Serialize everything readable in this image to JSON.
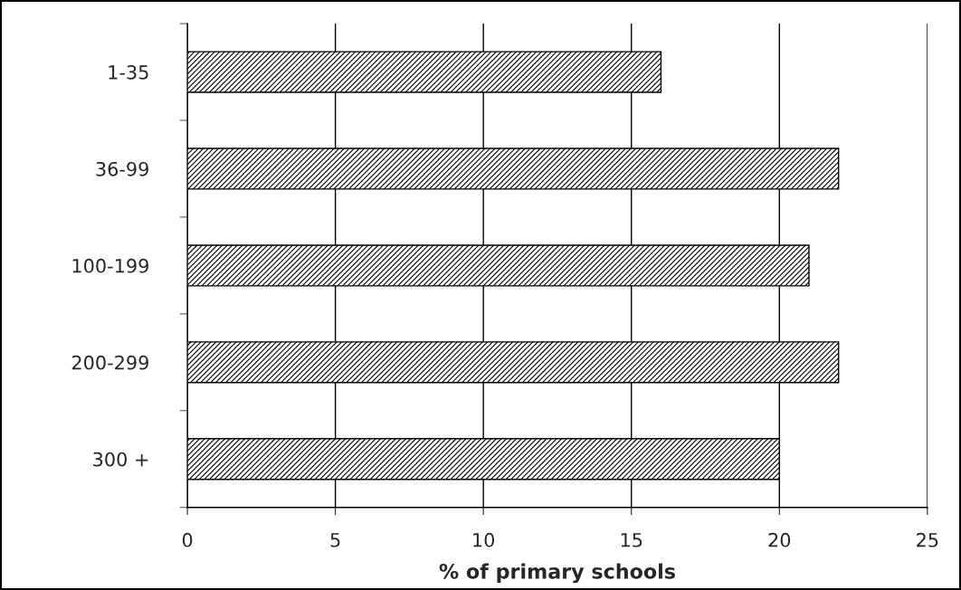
{
  "chart_data": {
    "type": "bar",
    "orientation": "horizontal",
    "xlabel": "% of primary schools",
    "categories": [
      "1-35",
      "36-99",
      "100-199",
      "200-299",
      "300 +"
    ],
    "values": [
      16,
      22,
      21,
      22,
      20
    ],
    "color": "#000000",
    "xlim": [
      0,
      25
    ],
    "xticks": [
      0,
      5,
      10,
      15,
      20,
      25
    ],
    "grid": "x"
  }
}
